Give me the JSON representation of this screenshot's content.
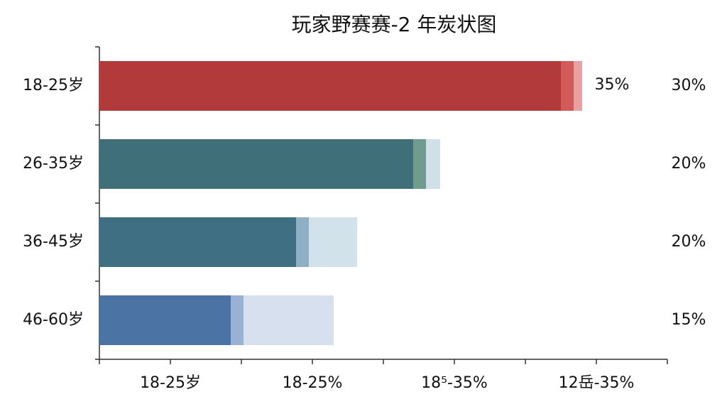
{
  "chart_data": {
    "type": "hbar-stacked",
    "title": "玩家野赛赛-2 年炭状图",
    "categories": [
      "18-25岁",
      "26-35岁",
      "36-45岁",
      "46-60岁"
    ],
    "series": [
      {
        "colors": [
          "#b23a3a",
          "#3f7079",
          "#3f6f82",
          "#4b73a3"
        ],
        "values": [
          6.5,
          4.42,
          2.77,
          1.85
        ]
      },
      {
        "colors": [
          "#d45a5a",
          "#6f9c8e",
          "#8fb0c4",
          "#9ab2d2"
        ],
        "values": [
          0.18,
          0.18,
          0.18,
          0.18
        ]
      },
      {
        "colors": [
          "#eaa0a0",
          "#cfe0e6",
          "#d2e2ea",
          "#d6e0ee"
        ],
        "values": [
          0.12,
          0.2,
          0.68,
          1.27
        ]
      }
    ],
    "xlim": [
      0,
      8
    ],
    "xticks": [
      {
        "value": 1,
        "label": "18-25岁"
      },
      {
        "value": 3,
        "label": "18-25%"
      },
      {
        "value": 5,
        "label": "18⁵-35%"
      },
      {
        "value": 7,
        "label": "12岳-35%"
      }
    ],
    "xminorticks": [
      0,
      2,
      4,
      6,
      8
    ],
    "right_labels": [
      "30%",
      "20%",
      "20%",
      "15%"
    ],
    "annotation": "35%"
  }
}
